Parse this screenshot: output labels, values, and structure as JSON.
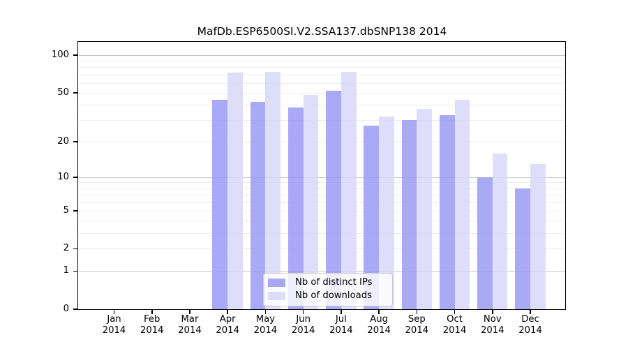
{
  "title": "MafDb.ESP6500SI.V2.SSA137.dbSNP138 2014",
  "chart_data": {
    "type": "bar",
    "title": "MafDb.ESP6500SI.V2.SSA137.dbSNP138 2014",
    "categories": [
      "Jan 2014",
      "Feb 2014",
      "Mar 2014",
      "Apr 2014",
      "May 2014",
      "Jun 2014",
      "Jul 2014",
      "Aug 2014",
      "Sep 2014",
      "Oct 2014",
      "Nov 2014",
      "Dec 2014"
    ],
    "month_labels": [
      "Jan",
      "Feb",
      "Mar",
      "Apr",
      "May",
      "Jun",
      "Jul",
      "Aug",
      "Sep",
      "Oct",
      "Nov",
      "Dec"
    ],
    "year_label": "2014",
    "series": [
      {
        "name": "Nb of distinct IPs",
        "color": "rgba(154,154,244,0.85)",
        "values": [
          0,
          0,
          0,
          44,
          42,
          38,
          52,
          27,
          30,
          33,
          10,
          8
        ]
      },
      {
        "name": "Nb of downloads",
        "color": "rgba(216,216,249,0.85)",
        "values": [
          0,
          0,
          0,
          73,
          74,
          48,
          74,
          32,
          37,
          44,
          16,
          13
        ]
      }
    ],
    "y_axis": {
      "scale": "log1p",
      "tick_values": [
        0,
        1,
        2,
        5,
        10,
        20,
        50,
        100
      ],
      "tick_labels": [
        "0",
        "1",
        "2",
        "5",
        "10",
        "20",
        "50",
        "100"
      ],
      "minor_gridlines": [
        2,
        3,
        4,
        5,
        6,
        7,
        8,
        9,
        20,
        30,
        40,
        50,
        60,
        70,
        80,
        90
      ],
      "major_gridlines": [
        1,
        10,
        100
      ],
      "ylim": [
        0,
        126
      ]
    },
    "xlabel": "",
    "ylabel": "",
    "grid": true,
    "legend": {
      "position": "lower center inside",
      "entries": [
        "Nb of distinct IPs",
        "Nb of downloads"
      ]
    }
  },
  "colors": {
    "bar_dark": "rgba(154,154,244,0.85)",
    "bar_light": "rgba(216,216,249,0.85)",
    "grid_minor": "#ececec",
    "grid_major": "#c6c6c6",
    "spine": "#000000",
    "legend_border": "#cccccc",
    "background": "#ffffff"
  }
}
